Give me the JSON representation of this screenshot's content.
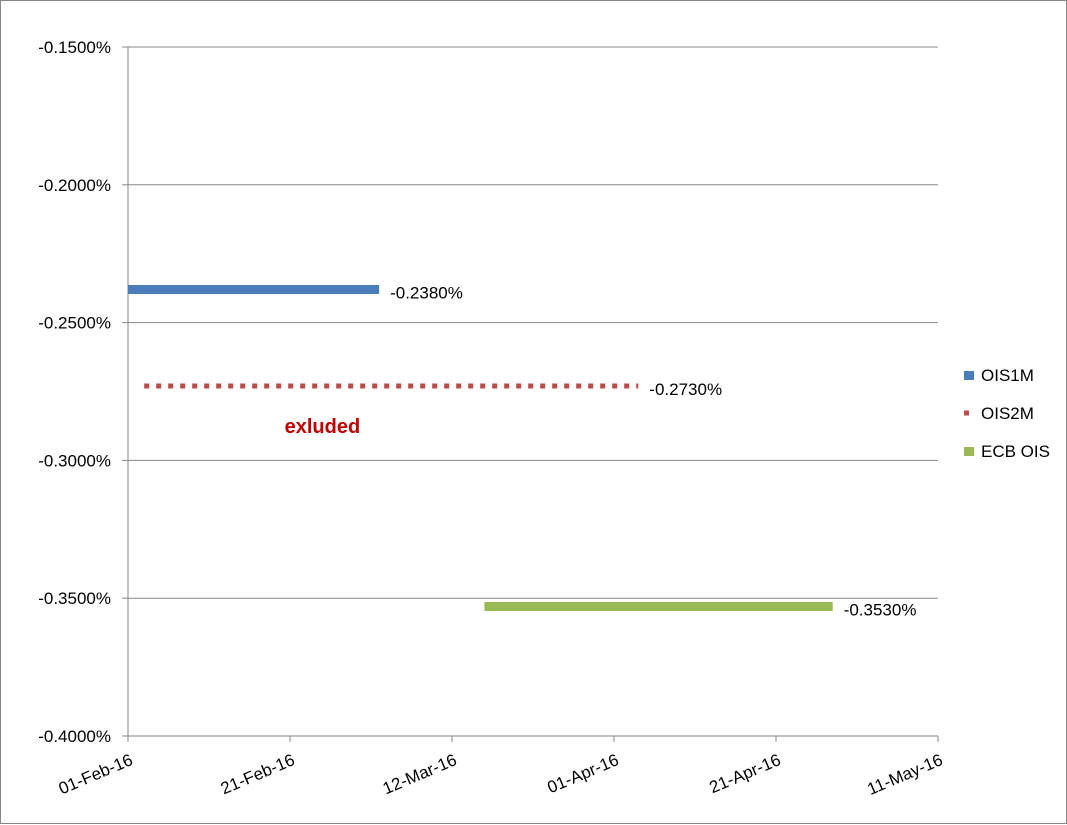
{
  "chart_data": {
    "type": "line",
    "title": "",
    "xlabel": "",
    "ylabel": "",
    "x_ticks": [
      "01-Feb-16",
      "21-Feb-16",
      "12-Mar-16",
      "01-Apr-16",
      "21-Apr-16",
      "11-May-16"
    ],
    "xlim": [
      "2016-02-01",
      "2016-05-11"
    ],
    "y_ticks": [
      "-0.1500%",
      "-0.2000%",
      "-0.2500%",
      "-0.3000%",
      "-0.3500%",
      "-0.4000%"
    ],
    "ylim": [
      -0.4,
      -0.15
    ],
    "grid": true,
    "legend_position": "right",
    "series": [
      {
        "name": "OIS1M",
        "color": "#4a7ebb",
        "style": "solid",
        "x": [
          "2016-02-01",
          "2016-03-03"
        ],
        "y": [
          -0.238,
          -0.238
        ],
        "data_label": "-0.2380%"
      },
      {
        "name": "OIS2M",
        "color": "#be4b48",
        "style": "dotted",
        "x": [
          "2016-02-03",
          "2016-04-04"
        ],
        "y": [
          -0.273,
          -0.273
        ],
        "data_label": "-0.2730%"
      },
      {
        "name": "ECB OIS",
        "color": "#98b954",
        "style": "solid",
        "x": [
          "2016-03-16",
          "2016-04-28"
        ],
        "y": [
          -0.353,
          -0.353
        ],
        "data_label": "-0.3530%"
      }
    ],
    "annotations": [
      {
        "text": "exluded",
        "color": "#c00000",
        "x": "2016-02-25",
        "y": -0.277
      }
    ]
  }
}
